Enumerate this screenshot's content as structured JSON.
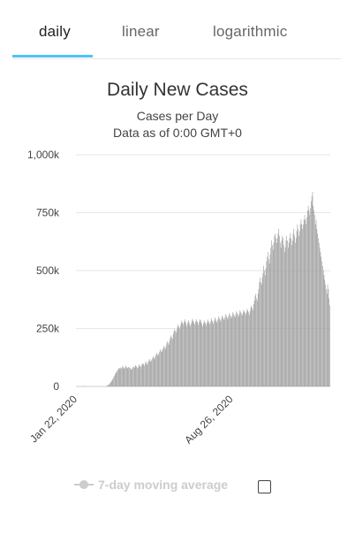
{
  "tabs": [
    {
      "label": "daily",
      "active": true
    },
    {
      "label": "linear",
      "active": false
    },
    {
      "label": "logarithmic",
      "active": false
    }
  ],
  "colors": {
    "accent": "#4fc3f7",
    "bar": "#999999",
    "grid": "#e6e6e6"
  },
  "legend": {
    "label": "7-day moving average",
    "checked": false
  },
  "chart_data": {
    "type": "bar",
    "title": "Daily New Cases",
    "subtitle": "Cases per Day",
    "note": "Data as of 0:00 GMT+0",
    "xlabel": "",
    "ylabel": "",
    "ylim": [
      0,
      1000000
    ],
    "y_ticks": [
      {
        "value": 0,
        "label": "0"
      },
      {
        "value": 250000,
        "label": "250k"
      },
      {
        "value": 500000,
        "label": "500k"
      },
      {
        "value": 750000,
        "label": "750k"
      },
      {
        "value": 1000000,
        "label": "1,000k"
      }
    ],
    "x_ticks": [
      {
        "index": 0,
        "label": "Jan 22, 2020"
      },
      {
        "index": 217,
        "label": "Aug 26, 2020"
      }
    ],
    "grid": true,
    "series": [
      {
        "values": [
          0,
          0,
          0,
          0,
          0,
          0,
          0,
          0,
          0,
          0,
          2000,
          0,
          2000,
          0,
          0,
          0,
          0,
          0,
          0,
          0,
          0,
          0,
          0,
          0,
          0,
          0,
          0,
          0,
          0,
          0,
          0,
          0,
          0,
          0,
          0,
          0,
          0,
          0,
          0,
          0,
          0,
          0,
          2000,
          2000,
          5000,
          8000,
          10000,
          15000,
          18000,
          22000,
          28000,
          33000,
          40000,
          45000,
          52000,
          58000,
          62000,
          68000,
          72000,
          78000,
          80000,
          75000,
          82000,
          78000,
          85000,
          88000,
          80000,
          76000,
          82000,
          90000,
          84000,
          80000,
          78000,
          85000,
          82000,
          80000,
          75000,
          72000,
          78000,
          83000,
          85000,
          80000,
          88000,
          92000,
          86000,
          82000,
          78000,
          90000,
          95000,
          88000,
          84000,
          92000,
          98000,
          100000,
          95000,
          90000,
          102000,
          108000,
          98000,
          94000,
          105000,
          112000,
          118000,
          110000,
          106000,
          115000,
          122000,
          130000,
          124000,
          118000,
          128000,
          138000,
          145000,
          138000,
          132000,
          142000,
          150000,
          160000,
          152000,
          148000,
          158000,
          165000,
          175000,
          168000,
          160000,
          172000,
          185000,
          195000,
          188000,
          180000,
          198000,
          210000,
          220000,
          212000,
          205000,
          225000,
          238000,
          248000,
          240000,
          232000,
          245000,
          258000,
          268000,
          258000,
          250000,
          262000,
          275000,
          285000,
          275000,
          268000,
          278000,
          290000,
          282000,
          270000,
          260000,
          275000,
          286000,
          278000,
          268000,
          260000,
          272000,
          284000,
          292000,
          282000,
          275000,
          268000,
          280000,
          290000,
          282000,
          276000,
          266000,
          278000,
          290000,
          286000,
          278000,
          270000,
          260000,
          272000,
          285000,
          278000,
          272000,
          264000,
          276000,
          288000,
          282000,
          275000,
          268000,
          280000,
          295000,
          286000,
          278000,
          270000,
          284000,
          298000,
          290000,
          282000,
          276000,
          288000,
          302000,
          296000,
          288000,
          280000,
          292000,
          306000,
          300000,
          292000,
          286000,
          298000,
          312000,
          306000,
          298000,
          290000,
          302000,
          316000,
          310000,
          302000,
          294000,
          306000,
          320000,
          314000,
          306000,
          298000,
          310000,
          324000,
          318000,
          310000,
          302000,
          314000,
          328000,
          322000,
          314000,
          306000,
          318000,
          330000,
          325000,
          318000,
          310000,
          322000,
          335000,
          328000,
          320000,
          310000,
          325000,
          340000,
          350000,
          340000,
          330000,
          355000,
          370000,
          390000,
          400000,
          380000,
          370000,
          400000,
          420000,
          450000,
          470000,
          450000,
          440000,
          470000,
          490000,
          520000,
          500000,
          480000,
          510000,
          540000,
          560000,
          580000,
          550000,
          530000,
          570000,
          600000,
          630000,
          610000,
          590000,
          620000,
          650000,
          660000,
          640000,
          620000,
          640000,
          660000,
          680000,
          650000,
          620000,
          600000,
          630000,
          650000,
          640000,
          610000,
          580000,
          600000,
          630000,
          650000,
          630000,
          600000,
          620000,
          640000,
          660000,
          640000,
          610000,
          630000,
          660000,
          680000,
          650000,
          620000,
          640000,
          670000,
          700000,
          680000,
          650000,
          670000,
          700000,
          720000,
          700000,
          680000,
          700000,
          720000,
          740000,
          720000,
          700000,
          730000,
          760000,
          780000,
          760000,
          740000,
          770000,
          800000,
          820000,
          840000,
          780000,
          760000,
          740000,
          700000,
          720000,
          680000,
          660000,
          640000,
          620000,
          600000,
          580000,
          560000,
          540000,
          520000,
          500000,
          480000,
          460000,
          440000,
          420000,
          400000,
          440000,
          420000,
          380000,
          350000
        ]
      }
    ]
  }
}
